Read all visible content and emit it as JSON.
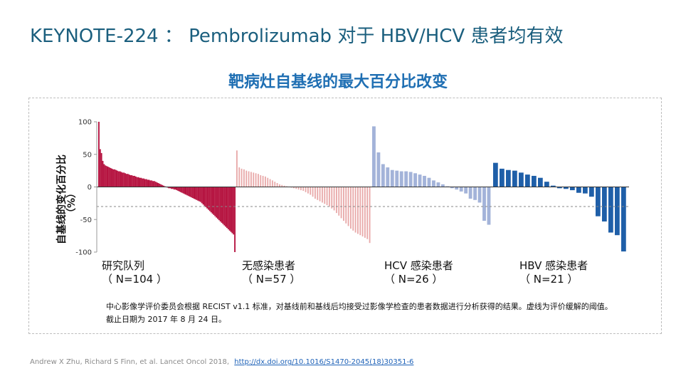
{
  "slide": {
    "title": "KEYNOTE-224 ： Pembrolizumab 对于 HBV/HCV 患者均有效"
  },
  "footnote": {
    "line1": "中心影像学评价委员会根据 RECIST v1.1 标准，对基线前和基线后均接受过影像学检查的患者数据进行分析获得的结果。虚线为评价缓解的阈值。",
    "line2": "截止日期为 2017 年 8 月 24 日。"
  },
  "citation": {
    "authors": "Andrew X Zhu, Richard S Finn, et al. Lancet Oncol 2018,",
    "link": "http://dx.doi.org/10.1016/S1470-2045(18)30351-6"
  },
  "chart_data": {
    "type": "bar",
    "title": "靶病灶自基线的最大百分比改变",
    "ylabel": "自基线的变化百分比（%）",
    "ylabel_line1": "自基线的变化百分比",
    "ylabel_line2": "（%）",
    "ylim": [
      -100,
      100
    ],
    "yticks": [
      100,
      50,
      0,
      -50,
      -100
    ],
    "threshold": -30,
    "threshold_style": "dashed",
    "groups": [
      {
        "name": "研究队列",
        "n_label": "（ N=104 ）",
        "color": "#b5123f",
        "bar_style": "dense",
        "values": [
          100,
          58,
          52,
          40,
          35,
          33,
          32,
          31,
          30,
          29,
          28,
          27,
          27,
          26,
          25,
          24,
          24,
          23,
          22,
          22,
          21,
          20,
          20,
          19,
          18,
          18,
          17,
          17,
          16,
          15,
          15,
          14,
          14,
          13,
          13,
          12,
          12,
          11,
          11,
          10,
          10,
          9,
          9,
          8,
          7,
          6,
          5,
          4,
          3,
          2,
          1,
          0,
          -1,
          -2,
          -2,
          -3,
          -3,
          -4,
          -4,
          -5,
          -6,
          -7,
          -8,
          -9,
          -10,
          -11,
          -12,
          -13,
          -14,
          -15,
          -16,
          -17,
          -18,
          -19,
          -20,
          -21,
          -22,
          -23,
          -25,
          -27,
          -29,
          -31,
          -33,
          -35,
          -37,
          -39,
          -41,
          -43,
          -45,
          -47,
          -49,
          -51,
          -53,
          -55,
          -57,
          -59,
          -61,
          -63,
          -65,
          -67,
          -69,
          -71,
          -73,
          -100
        ]
      },
      {
        "name": "无感染患者",
        "n_label": "（ N=57 ）",
        "color": "#e8a9a9",
        "bar_style": "spaced",
        "values": [
          56,
          30,
          28,
          27,
          25,
          24,
          23,
          22,
          21,
          20,
          18,
          17,
          16,
          14,
          12,
          10,
          8,
          6,
          4,
          3,
          2,
          1,
          0,
          -1,
          -2,
          -3,
          -4,
          -5,
          -6,
          -8,
          -10,
          -12,
          -15,
          -18,
          -20,
          -22,
          -24,
          -26,
          -28,
          -30,
          -33,
          -36,
          -40,
          -44,
          -48,
          -52,
          -56,
          -60,
          -64,
          -67,
          -70,
          -72,
          -74,
          -76,
          -78,
          -80,
          -86
        ]
      },
      {
        "name": "HCV 感染患者",
        "n_label": "（ N=26 ）",
        "color": "#a3b3d9",
        "bar_style": "spaced",
        "values": [
          93,
          53,
          35,
          30,
          26,
          25,
          24,
          24,
          23,
          21,
          19,
          17,
          14,
          10,
          7,
          4,
          1,
          -2,
          -4,
          -7,
          -10,
          -18,
          -20,
          -24,
          -52,
          -58
        ]
      },
      {
        "name": "HBV 感染患者",
        "n_label": "（ N=21 ）",
        "color": "#1f5fa8",
        "bar_style": "spaced",
        "values": [
          37,
          28,
          26,
          25,
          22,
          19,
          17,
          14,
          8,
          2,
          -2,
          -3,
          -5,
          -9,
          -10,
          -15,
          -45,
          -53,
          -70,
          -74,
          -99
        ]
      }
    ]
  }
}
